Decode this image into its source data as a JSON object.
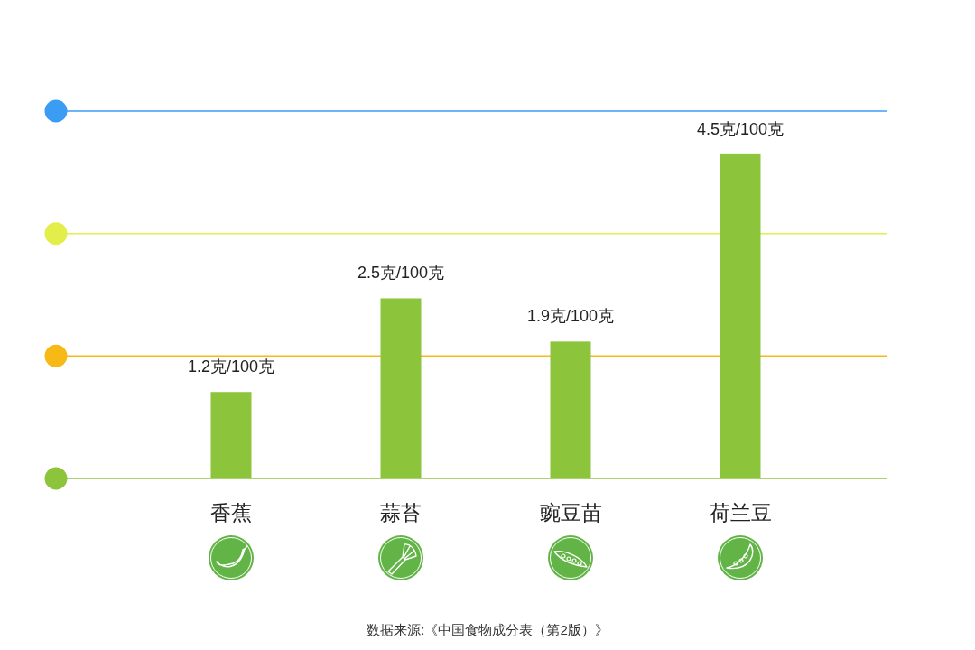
{
  "chart_data": {
    "type": "bar",
    "categories": [
      "香蕉",
      "蒜苔",
      "豌豆苗",
      "荷兰豆"
    ],
    "values": [
      1.2,
      2.5,
      1.9,
      4.5
    ],
    "color": "#8cc43c",
    "value_labels": [
      "1.2克/100克",
      "2.5克/100克",
      "1.9克/100克",
      "4.5克/100克"
    ],
    "tick_labels": "x",
    "ref_lines": [
      {
        "axis": "y",
        "value": 1.7,
        "color": "#f7b916"
      },
      {
        "axis": "y",
        "value": 3.4,
        "color": "#e3ee4b"
      },
      {
        "axis": "y",
        "value": 5.1,
        "color": "#3b9cf3"
      }
    ],
    "annotations": [
      "数据来源:《中国食物成分表（第2版）》"
    ]
  }
}
